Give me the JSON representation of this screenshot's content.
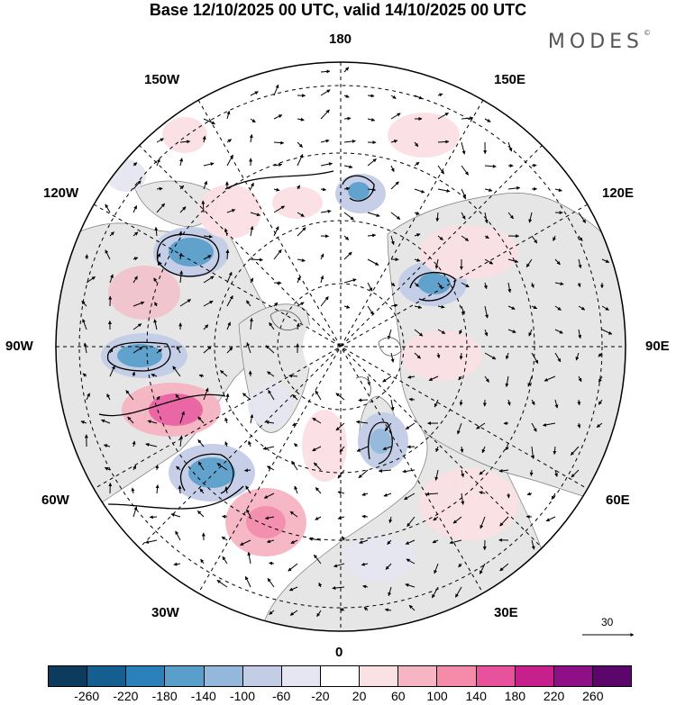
{
  "title": "Base 12/10/2025 00 UTC, valid 14/10/2025 00 UTC",
  "brand": "MODES",
  "brand_mark": "©",
  "longitude_labels": {
    "top": "180",
    "bottom": "0",
    "left": "90W",
    "right": "90E",
    "upper_left_1": "150W",
    "upper_left_2": "120W",
    "upper_right_1": "150E",
    "upper_right_2": "120E",
    "lower_left_1": "60W",
    "lower_left_2": "30W",
    "lower_right_1": "60E",
    "lower_right_2": "30E"
  },
  "reference_vector": {
    "label": "30"
  },
  "colorbar": {
    "ticks": [
      "-260",
      "-220",
      "-180",
      "-140",
      "-100",
      "-60",
      "-20",
      "20",
      "60",
      "100",
      "140",
      "180",
      "220",
      "260"
    ],
    "colors": [
      "#0d3b5e",
      "#145f8f",
      "#2a80b9",
      "#5a9fcc",
      "#93b8dc",
      "#c3cde6",
      "#e6e6f2",
      "#ffffff",
      "#fbe0e4",
      "#f6b5c2",
      "#f48bab",
      "#e8529c",
      "#c7208c",
      "#8e0f86",
      "#5a066b"
    ]
  },
  "anomaly_features": [
    {
      "sign": "negative",
      "strength": -180,
      "region": "Western Canada / Gulf of Alaska"
    },
    {
      "sign": "negative",
      "strength": -180,
      "region": "Hudson Bay / Central Canada"
    },
    {
      "sign": "negative",
      "strength": -180,
      "region": "Western North Atlantic"
    },
    {
      "sign": "positive",
      "strength": 180,
      "region": "Eastern United States"
    },
    {
      "sign": "positive",
      "strength": 180,
      "region": "Central North Atlantic"
    },
    {
      "sign": "negative",
      "strength": -140,
      "region": "East Siberian Sea"
    },
    {
      "sign": "negative",
      "strength": -140,
      "region": "Central Siberia"
    },
    {
      "sign": "negative",
      "strength": -100,
      "region": "Scandinavia"
    }
  ]
}
